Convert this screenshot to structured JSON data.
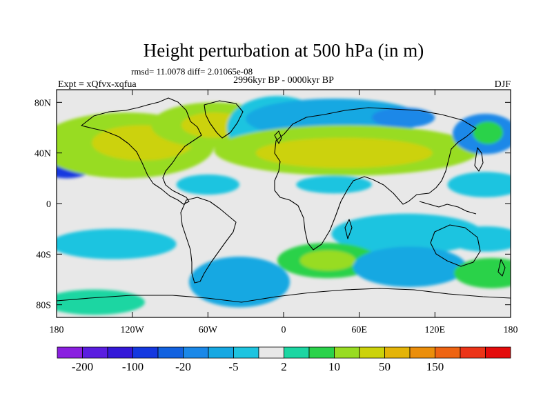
{
  "chart_data": {
    "type": "heatmap",
    "title": "Height perturbation at 500 hPa (in m)",
    "stats_line": "rmsd= 11.0078 diff= 2.01065e-08",
    "subtitle": "2996kyr BP - 0000kyr BP",
    "left_label": "Expt = xQfvx-xqfua",
    "right_label": "DJF",
    "x_ticks": [
      {
        "value": -180,
        "label": "180"
      },
      {
        "value": -120,
        "label": "120W"
      },
      {
        "value": -60,
        "label": "60W"
      },
      {
        "value": 0,
        "label": "0"
      },
      {
        "value": 60,
        "label": "60E"
      },
      {
        "value": 120,
        "label": "120E"
      },
      {
        "value": 180,
        "label": "180"
      }
    ],
    "y_ticks": [
      {
        "value": 80,
        "label": "80N"
      },
      {
        "value": 40,
        "label": "40N"
      },
      {
        "value": 0,
        "label": "0"
      },
      {
        "value": -40,
        "label": "40S"
      },
      {
        "value": -80,
        "label": "80S"
      }
    ],
    "xlim": [
      -180,
      180
    ],
    "ylim": [
      -90,
      90
    ],
    "colorbar": {
      "colors": [
        "#8a1fe0",
        "#5a1de0",
        "#3418d8",
        "#1438e0",
        "#1262e0",
        "#1a88e8",
        "#16a8e2",
        "#1ec4e0",
        "#e8e8e8",
        "#1cd6a2",
        "#2ad24a",
        "#98dc22",
        "#ccd20a",
        "#e4b408",
        "#eb8e0a",
        "#ee6412",
        "#ec3418",
        "#e40c0c"
      ],
      "labels": [
        {
          "text": "-200",
          "boundary": 1
        },
        {
          "text": "-100",
          "boundary": 3
        },
        {
          "text": "-20",
          "boundary": 5
        },
        {
          "text": "-5",
          "boundary": 7
        },
        {
          "text": "2",
          "boundary": 9
        },
        {
          "text": "10",
          "boundary": 11
        },
        {
          "text": "50",
          "boundary": 13
        },
        {
          "text": "150",
          "boundary": 15
        }
      ]
    },
    "anomalies": [
      {
        "lon": -172,
        "lat": 40,
        "rx": 30,
        "ry": 20,
        "level": 3
      },
      {
        "lon": -165,
        "lat": 38,
        "rx": 14,
        "ry": 10,
        "level": 2
      },
      {
        "lon": -125,
        "lat": 46,
        "rx": 70,
        "ry": 26,
        "level": 11
      },
      {
        "lon": -112,
        "lat": 48,
        "rx": 40,
        "ry": 14,
        "level": 12
      },
      {
        "lon": -55,
        "lat": 62,
        "rx": 50,
        "ry": 18,
        "level": 11
      },
      {
        "lon": -55,
        "lat": 62,
        "rx": 26,
        "ry": 10,
        "level": 12
      },
      {
        "lon": -5,
        "lat": 60,
        "rx": 40,
        "ry": 25,
        "level": 7
      },
      {
        "lon": 40,
        "lat": 67,
        "rx": 70,
        "ry": 16,
        "level": 6
      },
      {
        "lon": 95,
        "lat": 68,
        "rx": 25,
        "ry": 8,
        "level": 5
      },
      {
        "lon": 50,
        "lat": 42,
        "rx": 105,
        "ry": 20,
        "level": 11
      },
      {
        "lon": 48,
        "lat": 40,
        "rx": 70,
        "ry": 12,
        "level": 12
      },
      {
        "lon": 160,
        "lat": 55,
        "rx": 26,
        "ry": 16,
        "level": 5
      },
      {
        "lon": 162,
        "lat": 56,
        "rx": 12,
        "ry": 9,
        "level": 10
      },
      {
        "lon": -60,
        "lat": 15,
        "rx": 25,
        "ry": 8,
        "level": 7
      },
      {
        "lon": 40,
        "lat": 15,
        "rx": 30,
        "ry": 7,
        "level": 7
      },
      {
        "lon": 160,
        "lat": 15,
        "rx": 30,
        "ry": 10,
        "level": 7
      },
      {
        "lon": -135,
        "lat": -32,
        "rx": 50,
        "ry": 12,
        "level": 7
      },
      {
        "lon": 98,
        "lat": -24,
        "rx": 60,
        "ry": 16,
        "level": 7
      },
      {
        "lon": 160,
        "lat": -28,
        "rx": 30,
        "ry": 10,
        "level": 7
      },
      {
        "lon": -35,
        "lat": -62,
        "rx": 40,
        "ry": 20,
        "level": 6
      },
      {
        "lon": 35,
        "lat": -45,
        "rx": 40,
        "ry": 14,
        "level": 10
      },
      {
        "lon": 35,
        "lat": -45,
        "rx": 22,
        "ry": 8,
        "level": 11
      },
      {
        "lon": 100,
        "lat": -50,
        "rx": 45,
        "ry": 16,
        "level": 6
      },
      {
        "lon": 165,
        "lat": -55,
        "rx": 30,
        "ry": 12,
        "level": 10
      },
      {
        "lon": -150,
        "lat": -78,
        "rx": 40,
        "ry": 10,
        "level": 9
      }
    ]
  }
}
